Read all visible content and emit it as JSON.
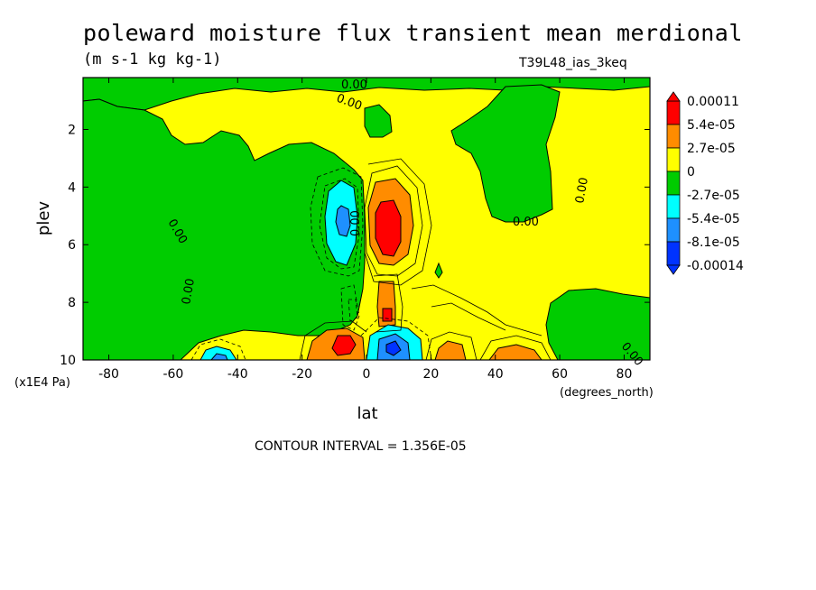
{
  "header": {
    "title": "poleward moisture flux transient mean merdional",
    "units": "(m s-1 kg kg-1)",
    "run": "T39L48_ias_3keq"
  },
  "footer": {
    "contour_interval": "CONTOUR INTERVAL = 1.356E-05"
  },
  "chart_data": {
    "type": "heatmap",
    "title": "poleward moisture flux transient mean merdional",
    "subtitle": "(m s-1 kg kg-1)",
    "xlabel": "lat",
    "xunits": "(degrees_north)",
    "ylabel": "plev",
    "yunits": "(x1E4 Pa)",
    "xlim": [
      -88,
      88
    ],
    "ylim": [
      0.2,
      10
    ],
    "y_reversed": true,
    "xticks": [
      -80,
      -60,
      -40,
      -20,
      0,
      20,
      40,
      60,
      80
    ],
    "xtick_labels": [
      "-80",
      "-60",
      "-40",
      "-20",
      "0",
      "20",
      "40",
      "60",
      "80"
    ],
    "yticks": [
      2,
      4,
      6,
      8,
      10
    ],
    "ytick_labels": [
      "2",
      "4",
      "6",
      "8",
      "10"
    ],
    "contour_interval": 1.356e-05,
    "colorbar": {
      "labels": [
        "0.00011",
        "5.4e-05",
        "2.7e-05",
        "0",
        "-2.7e-05",
        "-5.4e-05",
        "-8.1e-05",
        "-0.00014"
      ],
      "colors": [
        "#ff0000",
        "#ff8c00",
        "#ffff00",
        "#00cc00",
        "#00ffff",
        "#1e90ff",
        "#0033ff"
      ]
    },
    "contour_labels": [
      "0.00",
      "0.00",
      "0.00",
      "0.00",
      "0.00",
      "0.00",
      "0.00",
      "0.00"
    ],
    "features": [
      {
        "kind": "max",
        "lat": 7,
        "plev": 5.2,
        "value": 0.00011
      },
      {
        "kind": "min",
        "lat": -7,
        "plev": 5.0,
        "value": -5.4e-05
      },
      {
        "kind": "max",
        "lat": -6,
        "plev": 9.3,
        "value": 0.00011
      },
      {
        "kind": "min",
        "lat": 7,
        "plev": 9.5,
        "value": -8.1e-05
      },
      {
        "kind": "max",
        "lat": 7,
        "plev": 8.3,
        "value": 5.4e-05
      },
      {
        "kind": "max",
        "lat": 25,
        "plev": 9.6,
        "value": 2.7e-05
      },
      {
        "kind": "max",
        "lat": 47,
        "plev": 9.6,
        "value": 2.7e-05
      },
      {
        "kind": "min",
        "lat": -50,
        "plev": 9.8,
        "value": -5.4e-05
      }
    ]
  }
}
